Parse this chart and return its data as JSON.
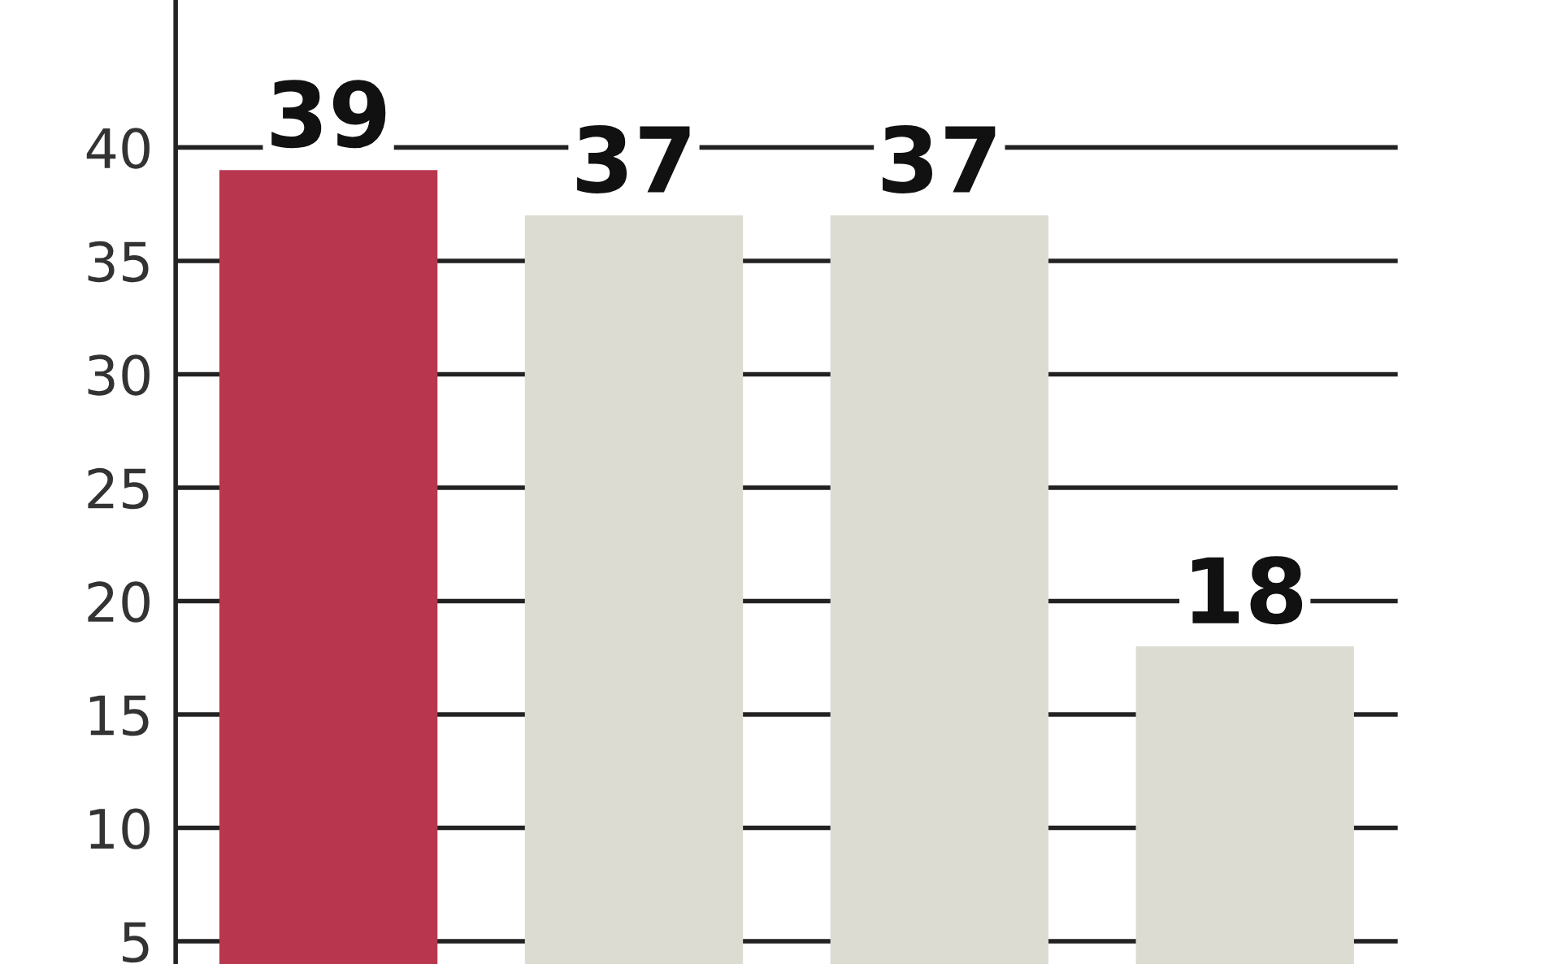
{
  "chart_data": {
    "type": "bar",
    "categories": [
      null,
      null,
      null,
      null
    ],
    "values": [
      39,
      37,
      37,
      18
    ],
    "colors": [
      "#b8374f",
      "#dcdcd2",
      "#dcdcd2",
      "#dcdcd2"
    ],
    "ylim": [
      4,
      46.5
    ],
    "yticks": [
      5,
      10,
      15,
      20,
      25,
      30,
      35,
      40
    ],
    "grid": "y",
    "data_labels": true
  }
}
